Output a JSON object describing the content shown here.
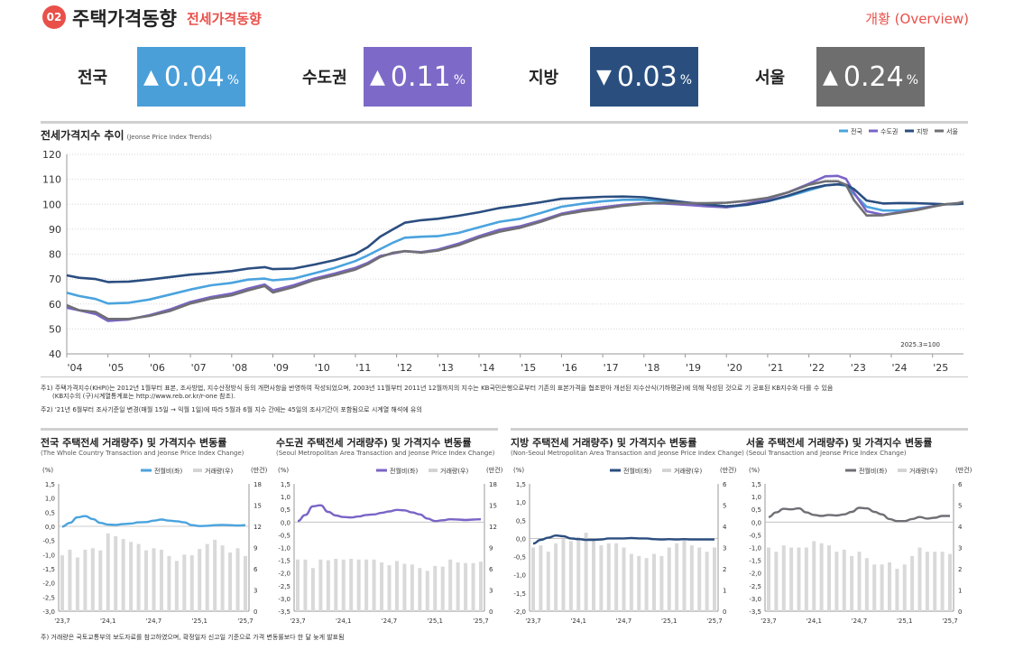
{
  "header": {
    "section_number": "02",
    "title": "주택가격동향",
    "subtitle": "전세가격동향",
    "right_label": "개황 (Overview)"
  },
  "stats": [
    {
      "label": "전국",
      "direction": "up",
      "arrow": "▲",
      "value": "0.04",
      "unit": "%",
      "color": "#4a9fd9"
    },
    {
      "label": "수도권",
      "direction": "up",
      "arrow": "▲",
      "value": "0.11",
      "unit": "%",
      "color": "#7d6ac8"
    },
    {
      "label": "지방",
      "direction": "down",
      "arrow": "▼",
      "value": "0.03",
      "unit": "%",
      "color": "#2a4f7f"
    },
    {
      "label": "서울",
      "direction": "up",
      "arrow": "▲",
      "value": "0.24",
      "unit": "%",
      "color": "#6e6e6e"
    }
  ],
  "main_chart": {
    "title": "전세가격지수 추이",
    "title_en": "(Jeonse Price Index Trends)",
    "base_note": "2025.3=100"
  },
  "notes": [
    "주1) 주택가격지수(KHPI)는 2012년 1월부터 표본, 조사방법, 지수산정방식 등의 개편사항을 반영하여 작성되었으며, 2003년 11월부터 2011년 12월까지의 지수는 KB국민은행으로부터 기존의 표본가격을 협조받아 개선된 지수산식(기하평균)에 의해 작성된 것으로 기 공표된 KB지수와 다를 수 있음",
    "(KB지수의 (구)시계열통계표는 http://www.reb.or.kr/r-one 참조).",
    "주2) '21년 6월부터 조사기준일 변경(매월 15일 → 익월 1일)에 따라 5월과 6월 지수 간에는 45일의 조사기간이 포함됨으로 시계열 해석에 유의"
  ],
  "small_charts": [
    {
      "title": "전국 주택전세 거래량주) 및 가격지수 변동률",
      "title_en": "(The Whole Country Transaction and Jeonse Price Index Change)"
    },
    {
      "title": "수도권 주택전세 거래량주) 및 가격지수 변동률",
      "title_en": "(Seoul Metropolitan Area Transaction and Jeonse Price Index Change)"
    },
    {
      "title": "지방 주택전세 거래량주) 및 가격지수 변동률",
      "title_en": "(Non-Seoul Metropolitan Area Transaction and Jeonse Price Index Change)"
    },
    {
      "title": "서울 주택전세 거래량주) 및 가격지수 변동률",
      "title_en": "(Seoul Transaction and Jeonse Price Index Change)"
    }
  ],
  "footnote": "주) 거래량은 국토교통부의 보도자료를 참고하였으며, 확정일자 신고일 기준으로 가격 변동률보다 한 달 늦게 발표됨",
  "chart_data": [
    {
      "type": "line",
      "title": "전세가격지수 추이",
      "ylim": [
        40,
        120
      ],
      "y_ticks": [
        40,
        50,
        60,
        70,
        80,
        90,
        100,
        110,
        120
      ],
      "x_ticks": [
        "'04",
        "'05",
        "'06",
        "'07",
        "'08",
        "'09",
        "'10",
        "'11",
        "'12",
        "'13",
        "'14",
        "'15",
        "'16",
        "'17",
        "'18",
        "'19",
        "'20",
        "'21",
        "'22",
        "'23",
        "'24",
        "'25"
      ],
      "xlim": [
        2004.0,
        2025.75
      ],
      "grid": true,
      "legend": "top-right",
      "annotation": "2025.3=100",
      "series": [
        {
          "name": "전국",
          "color": "#4aa3de",
          "x": [
            2004.0,
            2004.3,
            2004.7,
            2005.0,
            2005.5,
            2006.0,
            2006.5,
            2007.0,
            2007.5,
            2008.0,
            2008.4,
            2008.8,
            2009.0,
            2009.5,
            2010.0,
            2010.5,
            2011.0,
            2011.3,
            2011.6,
            2011.9,
            2012.2,
            2012.6,
            2013.0,
            2013.5,
            2014.0,
            2014.5,
            2015.0,
            2015.5,
            2016.0,
            2016.5,
            2017.0,
            2017.5,
            2018.0,
            2018.5,
            2019.0,
            2019.5,
            2020.0,
            2020.5,
            2021.0,
            2021.5,
            2022.0,
            2022.4,
            2022.7,
            2022.9,
            2023.1,
            2023.4,
            2023.8,
            2024.2,
            2024.6,
            2025.0,
            2025.3,
            2025.6,
            2025.75
          ],
          "y": [
            64.5,
            63.2,
            62,
            60.2,
            60.5,
            61.8,
            63.8,
            65.8,
            67.5,
            68.5,
            69.8,
            70.2,
            69.5,
            70.2,
            72.3,
            74.5,
            77.2,
            79.5,
            82,
            84.5,
            86.6,
            87,
            87.2,
            88.5,
            90.8,
            93,
            94.2,
            96.5,
            99,
            100.2,
            101.2,
            101.8,
            101.8,
            101.2,
            100.3,
            99.5,
            98.8,
            99.8,
            101.2,
            103.2,
            105.6,
            107.5,
            108,
            107.4,
            104,
            99,
            97.5,
            97.5,
            98.2,
            99.2,
            100,
            100.1,
            100.2
          ]
        },
        {
          "name": "수도권",
          "color": "#7a64c6",
          "x": [
            2004.0,
            2004.3,
            2004.7,
            2005.0,
            2005.5,
            2006.0,
            2006.5,
            2007.0,
            2007.5,
            2008.0,
            2008.4,
            2008.8,
            2009.0,
            2009.5,
            2010.0,
            2010.5,
            2011.0,
            2011.3,
            2011.6,
            2011.9,
            2012.2,
            2012.6,
            2013.0,
            2013.5,
            2014.0,
            2014.5,
            2015.0,
            2015.5,
            2016.0,
            2016.5,
            2017.0,
            2017.5,
            2018.0,
            2018.5,
            2019.0,
            2019.5,
            2020.0,
            2020.5,
            2021.0,
            2021.5,
            2022.0,
            2022.4,
            2022.7,
            2022.9,
            2023.1,
            2023.4,
            2023.8,
            2024.2,
            2024.6,
            2025.0,
            2025.3,
            2025.6,
            2025.75
          ],
          "y": [
            58.5,
            57.5,
            56,
            53.2,
            53.8,
            55.5,
            57.8,
            60.8,
            62.8,
            64.2,
            66.2,
            67.8,
            65.5,
            67.5,
            70.2,
            72.2,
            74.5,
            76.5,
            79.2,
            80.2,
            81.2,
            80.8,
            81.8,
            84.2,
            87.2,
            89.8,
            91.2,
            93.5,
            96.2,
            97.8,
            98.8,
            99.8,
            100.4,
            100.3,
            99.8,
            99.2,
            98.8,
            100.2,
            102.2,
            104.8,
            108.2,
            111.2,
            111.4,
            110.2,
            104.5,
            97.2,
            95.8,
            96.8,
            97.8,
            99.2,
            100,
            100.2,
            100.5
          ]
        },
        {
          "name": "지방",
          "color": "#2b4e80",
          "x": [
            2004.0,
            2004.3,
            2004.7,
            2005.0,
            2005.5,
            2006.0,
            2006.5,
            2007.0,
            2007.5,
            2008.0,
            2008.4,
            2008.8,
            2009.0,
            2009.5,
            2010.0,
            2010.5,
            2011.0,
            2011.3,
            2011.6,
            2011.9,
            2012.2,
            2012.6,
            2013.0,
            2013.5,
            2014.0,
            2014.5,
            2015.0,
            2015.5,
            2016.0,
            2016.5,
            2017.0,
            2017.5,
            2018.0,
            2018.5,
            2019.0,
            2019.5,
            2020.0,
            2020.5,
            2021.0,
            2021.5,
            2022.0,
            2022.4,
            2022.7,
            2022.9,
            2023.1,
            2023.4,
            2023.8,
            2024.2,
            2024.6,
            2025.0,
            2025.3,
            2025.6,
            2025.75
          ],
          "y": [
            71.5,
            70.5,
            70,
            68.8,
            69,
            69.8,
            70.8,
            71.8,
            72.4,
            73.2,
            74.2,
            74.8,
            74,
            74.2,
            75.8,
            77.6,
            80,
            82.8,
            87,
            89.8,
            92.6,
            93.6,
            94.2,
            95.4,
            96.8,
            98.5,
            99.6,
            100.8,
            102.2,
            102.6,
            103,
            103.1,
            102.8,
            101.8,
            100.8,
            100,
            99.2,
            99.8,
            101.2,
            103.5,
            106.2,
            107.6,
            108,
            107.8,
            106,
            101.5,
            100.3,
            100.5,
            100.4,
            100.2,
            100,
            100.1,
            100.3
          ]
        },
        {
          "name": "서울",
          "color": "#6f6f75",
          "x": [
            2004.0,
            2004.3,
            2004.7,
            2005.0,
            2005.5,
            2006.0,
            2006.5,
            2007.0,
            2007.5,
            2008.0,
            2008.4,
            2008.8,
            2009.0,
            2009.5,
            2010.0,
            2010.5,
            2011.0,
            2011.3,
            2011.6,
            2011.9,
            2012.2,
            2012.6,
            2013.0,
            2013.5,
            2014.0,
            2014.5,
            2015.0,
            2015.5,
            2016.0,
            2016.5,
            2017.0,
            2017.5,
            2018.0,
            2018.5,
            2019.0,
            2019.5,
            2020.0,
            2020.5,
            2021.0,
            2021.5,
            2022.0,
            2022.4,
            2022.7,
            2022.9,
            2023.1,
            2023.4,
            2023.8,
            2024.2,
            2024.6,
            2025.0,
            2025.3,
            2025.6,
            2025.75
          ],
          "y": [
            59.5,
            57.5,
            56.8,
            54,
            54,
            55.2,
            57.2,
            60.2,
            62.2,
            63.5,
            65.5,
            67.2,
            64.6,
            66.8,
            69.6,
            71.6,
            73.8,
            76,
            78.8,
            80.5,
            81.2,
            80.6,
            81.4,
            83.6,
            86.6,
            89,
            90.6,
            93,
            95.8,
            97.2,
            98.2,
            99.4,
            100.2,
            100.6,
            100.4,
            100.4,
            100.6,
            101.4,
            102.6,
            104.8,
            107.8,
            109.2,
            109.2,
            107.8,
            101.5,
            95.5,
            95.6,
            96.6,
            97.6,
            99,
            100,
            100.4,
            101
          ]
        }
      ]
    },
    {
      "type": "bar+line",
      "title": "전국 주택전세 거래량주) 및 가격지수 변동률",
      "left_axis_unit": "(%)",
      "right_axis_unit": "(만건)",
      "ylim_left": [
        -3.0,
        1.5
      ],
      "ylim_right": [
        0,
        18
      ],
      "y_ticks_left": [
        "1,5",
        "1,0",
        "0,5",
        "0,0",
        "-0,5",
        "-1,0",
        "-1,5",
        "-2,0",
        "-2,5",
        "-3,0"
      ],
      "y_ticks_right": [
        "18",
        "15",
        "12",
        "9",
        "6",
        "3",
        "0"
      ],
      "x_ticks": [
        "'23,7",
        "'24,1",
        "'24,7",
        "'25,1",
        "'25,7"
      ],
      "legend": [
        "전월비(좌)",
        "거래량(우)"
      ],
      "line_color": "#4aa3de",
      "line_values": [
        -0.01,
        0.12,
        0.32,
        0.36,
        0.26,
        0.12,
        0.06,
        0.05,
        0.08,
        0.1,
        0.14,
        0.15,
        0.2,
        0.24,
        0.2,
        0.18,
        0.14,
        0.04,
        0.01,
        0.02,
        0.04,
        0.05,
        0.04,
        0.03,
        0.04
      ],
      "bar_values": [
        7.9,
        8.7,
        7.6,
        8.7,
        8.9,
        8.6,
        11.0,
        10.6,
        10.2,
        9.8,
        9.5,
        8.6,
        8.9,
        8.7,
        7.8,
        7.1,
        8.0,
        7.9,
        8.8,
        9.5,
        10.1,
        9.3,
        8.3,
        8.9,
        7.8
      ]
    },
    {
      "type": "bar+line",
      "title": "수도권 주택전세 거래량주) 및 가격지수 변동률",
      "left_axis_unit": "(%)",
      "right_axis_unit": "(만건)",
      "ylim_left": [
        -3.5,
        1.5
      ],
      "ylim_right": [
        0,
        18
      ],
      "y_ticks_left": [
        "1,5",
        "1,0",
        "0,5",
        "0,0",
        "-0,5",
        "-1,0",
        "-1,5",
        "-2,0",
        "-2,5",
        "-3,0",
        "-3,5"
      ],
      "y_ticks_right": [
        "18",
        "15",
        "12",
        "9",
        "6",
        "3",
        "0"
      ],
      "x_ticks": [
        "'23,7",
        "'24,1",
        "'24,7",
        "'25,1",
        "'25,7"
      ],
      "legend": [
        "전월비(좌)",
        "거래량(우)"
      ],
      "line_color": "#7a64c6",
      "line_values": [
        0.04,
        0.28,
        0.62,
        0.66,
        0.4,
        0.26,
        0.2,
        0.18,
        0.22,
        0.28,
        0.3,
        0.36,
        0.42,
        0.48,
        0.46,
        0.38,
        0.3,
        0.14,
        0.04,
        0.07,
        0.11,
        0.1,
        0.08,
        0.1,
        0.11
      ],
      "bar_values": [
        7.3,
        7.3,
        6.1,
        7.3,
        7.2,
        7.4,
        7.3,
        7.4,
        7.3,
        7.3,
        7.3,
        6.9,
        6.5,
        7.1,
        6.7,
        6.6,
        6.1,
        5.7,
        6.4,
        6.3,
        7.3,
        6.9,
        6.8,
        6.8,
        7.0
      ]
    },
    {
      "type": "bar+line",
      "title": "지방 주택전세 거래량주) 및 가격지수 변동률",
      "left_axis_unit": "(%)",
      "right_axis_unit": "(만건)",
      "ylim_left": [
        -2.0,
        1.5
      ],
      "ylim_right": [
        0,
        6
      ],
      "y_ticks_left": [
        "1,5",
        "1,0",
        "0,5",
        "0,0",
        "-0,5",
        "-1,0",
        "-1,5",
        "-2,0"
      ],
      "y_ticks_right": [
        "6",
        "5",
        "4",
        "3",
        "2",
        "1",
        "0"
      ],
      "x_ticks": [
        "'23,7",
        "'24,1",
        "'24,7",
        "'25,1",
        "'25,7"
      ],
      "legend": [
        "전월비(좌)",
        "거래량(우)"
      ],
      "line_color": "#2b4e80",
      "line_values": [
        -0.14,
        -0.04,
        0.02,
        0.08,
        0.06,
        0.0,
        -0.02,
        -0.04,
        -0.04,
        -0.03,
        0.0,
        0.0,
        0.0,
        0.01,
        0.0,
        0.0,
        -0.02,
        -0.03,
        -0.02,
        -0.03,
        -0.02,
        -0.03,
        -0.03,
        -0.03,
        -0.03
      ],
      "bar_values": [
        3.0,
        3.1,
        2.8,
        3.2,
        3.4,
        3.3,
        3.5,
        3.7,
        3.4,
        3.1,
        3.2,
        3.2,
        3.0,
        2.7,
        2.6,
        2.5,
        2.7,
        2.6,
        3.0,
        3.2,
        3.4,
        3.1,
        3.0,
        2.8,
        3.0
      ]
    },
    {
      "type": "bar+line",
      "title": "서울 주택전세 거래량주) 및 가격지수 변동률",
      "left_axis_unit": "(%)",
      "right_axis_unit": "(만건)",
      "ylim_left": [
        -3.5,
        1.5
      ],
      "ylim_right": [
        0,
        6
      ],
      "y_ticks_left": [
        "1,5",
        "1,0",
        "0,5",
        "0,0",
        "-0,5",
        "-1,0",
        "-1,5",
        "-2,0",
        "-2,5",
        "-3,0",
        "-3,5"
      ],
      "y_ticks_right": [
        "6",
        "5",
        "4",
        "3",
        "2",
        "1",
        "0"
      ],
      "x_ticks": [
        "'23,7",
        "'24,1",
        "'24,7",
        "'25,1",
        "'25,7"
      ],
      "legend": [
        "전월비(좌)",
        "거래량(우)"
      ],
      "line_color": "#6f6f75",
      "line_values": [
        0.2,
        0.38,
        0.52,
        0.5,
        0.54,
        0.38,
        0.28,
        0.24,
        0.28,
        0.26,
        0.3,
        0.4,
        0.56,
        0.54,
        0.4,
        0.3,
        0.12,
        0.04,
        0.04,
        0.12,
        0.2,
        0.14,
        0.17,
        0.24,
        0.24
      ],
      "bar_values": [
        3.0,
        2.8,
        3.1,
        3.0,
        3.0,
        3.0,
        3.3,
        3.2,
        3.1,
        2.8,
        2.9,
        2.6,
        2.8,
        2.5,
        2.2,
        2.2,
        2.3,
        2.0,
        2.2,
        2.6,
        3.0,
        2.8,
        2.8,
        2.8,
        2.7
      ]
    }
  ]
}
